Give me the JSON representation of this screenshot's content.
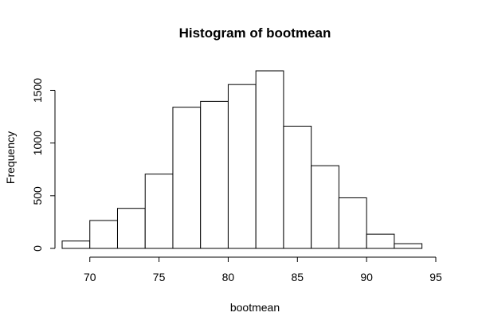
{
  "chart_data": {
    "type": "bar",
    "title": "Histogram of bootmean",
    "xlabel": "bootmean",
    "ylabel": "Frequency",
    "bin_edges": [
      68,
      70,
      72,
      74,
      76,
      78,
      80,
      82,
      84,
      86,
      88,
      90,
      92,
      94
    ],
    "values": [
      70,
      265,
      380,
      705,
      1340,
      1395,
      1555,
      1685,
      1160,
      785,
      480,
      135,
      45
    ],
    "xlim": [
      68,
      95
    ],
    "ylim": [
      0,
      1700
    ],
    "x_ticks": [
      "70",
      "75",
      "80",
      "85",
      "90",
      "95"
    ],
    "y_ticks": [
      "0",
      "500",
      "1000",
      "1500"
    ],
    "grid": false,
    "legend": "none",
    "colors": {
      "bar_fill": "#ffffff",
      "bar_stroke": "#000000"
    }
  }
}
